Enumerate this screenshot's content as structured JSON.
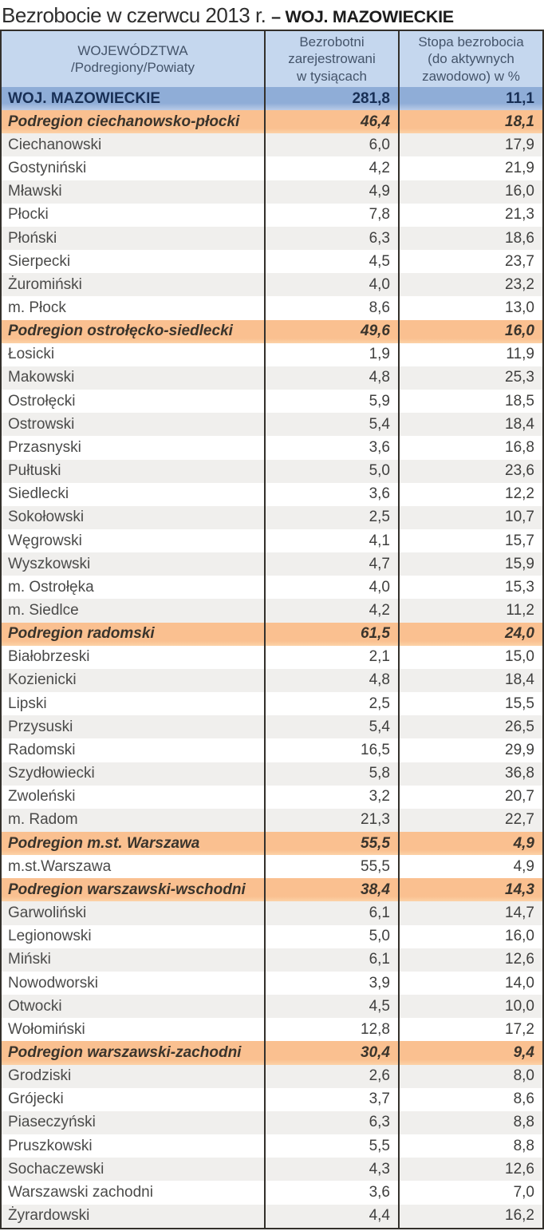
{
  "title": {
    "regular": "Bezrobocie w czerwcu 2013 r. ",
    "bold": "– WOJ. MAZOWIECKIE"
  },
  "table": {
    "headers": {
      "col1": "WOJEWÓDZTWA\n/Podregiony/Powiaty",
      "col2": "Bezrobotni\nzarejestrowani\nw tysiącach",
      "col3": "Stopa bezrobocia\n(do aktywnych\nzawodowo) w %"
    },
    "rows": [
      {
        "type": "voivodeship",
        "shade": false,
        "name": "WOJ. MAZOWIECKIE",
        "unemployed": "281,8",
        "rate": "11,1"
      },
      {
        "type": "subregion",
        "shade": false,
        "name": "Podregion ciechanowsko-płocki",
        "unemployed": "46,4",
        "rate": "18,1"
      },
      {
        "type": "county",
        "shade": true,
        "name": "Ciechanowski",
        "unemployed": "6,0",
        "rate": "17,9"
      },
      {
        "type": "county",
        "shade": false,
        "name": "Gostyniński",
        "unemployed": "4,2",
        "rate": "21,9"
      },
      {
        "type": "county",
        "shade": true,
        "name": "Mławski",
        "unemployed": "4,9",
        "rate": "16,0"
      },
      {
        "type": "county",
        "shade": false,
        "name": "Płocki",
        "unemployed": "7,8",
        "rate": "21,3"
      },
      {
        "type": "county",
        "shade": true,
        "name": "Płoński",
        "unemployed": "6,3",
        "rate": "18,6"
      },
      {
        "type": "county",
        "shade": false,
        "name": "Sierpecki",
        "unemployed": "4,5",
        "rate": "23,7"
      },
      {
        "type": "county",
        "shade": true,
        "name": "Żuromiński",
        "unemployed": "4,0",
        "rate": "23,2"
      },
      {
        "type": "county",
        "shade": false,
        "name": "m. Płock",
        "unemployed": "8,6",
        "rate": "13,0"
      },
      {
        "type": "subregion",
        "shade": false,
        "name": "Podregion ostrołęcko-siedlecki",
        "unemployed": "49,6",
        "rate": "16,0"
      },
      {
        "type": "county",
        "shade": false,
        "name": "Łosicki",
        "unemployed": "1,9",
        "rate": "11,9"
      },
      {
        "type": "county",
        "shade": true,
        "name": "Makowski",
        "unemployed": "4,8",
        "rate": "25,3"
      },
      {
        "type": "county",
        "shade": false,
        "name": "Ostrołęcki",
        "unemployed": "5,9",
        "rate": "18,5"
      },
      {
        "type": "county",
        "shade": true,
        "name": "Ostrowski",
        "unemployed": "5,4",
        "rate": "18,4"
      },
      {
        "type": "county",
        "shade": false,
        "name": "Przasnyski",
        "unemployed": "3,6",
        "rate": "16,8"
      },
      {
        "type": "county",
        "shade": true,
        "name": "Pułtuski",
        "unemployed": "5,0",
        "rate": "23,6"
      },
      {
        "type": "county",
        "shade": false,
        "name": "Siedlecki",
        "unemployed": "3,6",
        "rate": "12,2"
      },
      {
        "type": "county",
        "shade": true,
        "name": "Sokołowski",
        "unemployed": "2,5",
        "rate": "10,7"
      },
      {
        "type": "county",
        "shade": false,
        "name": "Węgrowski",
        "unemployed": "4,1",
        "rate": "15,7"
      },
      {
        "type": "county",
        "shade": true,
        "name": "Wyszkowski",
        "unemployed": "4,7",
        "rate": "15,9"
      },
      {
        "type": "county",
        "shade": false,
        "name": "m. Ostrołęka",
        "unemployed": "4,0",
        "rate": "15,3"
      },
      {
        "type": "county",
        "shade": true,
        "name": "m. Siedlce",
        "unemployed": "4,2",
        "rate": "11,2"
      },
      {
        "type": "subregion",
        "shade": false,
        "name": "Podregion radomski",
        "unemployed": "61,5",
        "rate": "24,0"
      },
      {
        "type": "county",
        "shade": false,
        "name": "Białobrzeski",
        "unemployed": "2,1",
        "rate": "15,0"
      },
      {
        "type": "county",
        "shade": true,
        "name": "Kozienicki",
        "unemployed": "4,8",
        "rate": "18,4"
      },
      {
        "type": "county",
        "shade": false,
        "name": "Lipski",
        "unemployed": "2,5",
        "rate": "15,5"
      },
      {
        "type": "county",
        "shade": true,
        "name": "Przysuski",
        "unemployed": "5,4",
        "rate": "26,5"
      },
      {
        "type": "county",
        "shade": false,
        "name": "Radomski",
        "unemployed": "16,5",
        "rate": "29,9"
      },
      {
        "type": "county",
        "shade": true,
        "name": "Szydłowiecki",
        "unemployed": "5,8",
        "rate": "36,8"
      },
      {
        "type": "county",
        "shade": false,
        "name": "Zwoleński",
        "unemployed": "3,2",
        "rate": "20,7"
      },
      {
        "type": "county",
        "shade": true,
        "name": "m. Radom",
        "unemployed": "21,3",
        "rate": "22,7"
      },
      {
        "type": "subregion",
        "shade": false,
        "name": "Podregion m.st. Warszawa",
        "unemployed": "55,5",
        "rate": "4,9"
      },
      {
        "type": "county",
        "shade": false,
        "name": "m.st.Warszawa",
        "unemployed": "55,5",
        "rate": "4,9"
      },
      {
        "type": "subregion",
        "shade": false,
        "name": "Podregion warszawski-wschodni",
        "unemployed": "38,4",
        "rate": "14,3"
      },
      {
        "type": "county",
        "shade": true,
        "name": "Garwoliński",
        "unemployed": "6,1",
        "rate": "14,7"
      },
      {
        "type": "county",
        "shade": false,
        "name": "Legionowski",
        "unemployed": "5,0",
        "rate": "16,0"
      },
      {
        "type": "county",
        "shade": true,
        "name": "Miński",
        "unemployed": "6,1",
        "rate": "12,6"
      },
      {
        "type": "county",
        "shade": false,
        "name": "Nowodworski",
        "unemployed": "3,9",
        "rate": "14,0"
      },
      {
        "type": "county",
        "shade": true,
        "name": "Otwocki",
        "unemployed": "4,5",
        "rate": "10,0"
      },
      {
        "type": "county",
        "shade": false,
        "name": "Wołomiński",
        "unemployed": "12,8",
        "rate": "17,2"
      },
      {
        "type": "subregion",
        "shade": false,
        "name": "Podregion warszawski-zachodni",
        "unemployed": "30,4",
        "rate": "9,4"
      },
      {
        "type": "county",
        "shade": true,
        "name": "Grodziski",
        "unemployed": "2,6",
        "rate": "8,0"
      },
      {
        "type": "county",
        "shade": false,
        "name": "Grójecki",
        "unemployed": "3,7",
        "rate": "8,6"
      },
      {
        "type": "county",
        "shade": true,
        "name": "Piaseczyński",
        "unemployed": "6,3",
        "rate": "8,8"
      },
      {
        "type": "county",
        "shade": false,
        "name": "Pruszkowski",
        "unemployed": "5,5",
        "rate": "8,8"
      },
      {
        "type": "county",
        "shade": true,
        "name": "Sochaczewski",
        "unemployed": "4,3",
        "rate": "12,6"
      },
      {
        "type": "county",
        "shade": false,
        "name": "Warszawski zachodni",
        "unemployed": "3,6",
        "rate": "7,0"
      },
      {
        "type": "county",
        "shade": true,
        "name": "Żyrardowski",
        "unemployed": "4,4",
        "rate": "16,2"
      }
    ]
  },
  "colors": {
    "header_bg": "#c5d7ee",
    "header_text": "#44546a",
    "voivodeship_row_bg": "#8fadd7",
    "subregion_row_bg": "#fac090",
    "shaded_row_bg": "#f0efed",
    "white_row_bg": "#ffffff",
    "border": "#33302b",
    "voivodeship_text": "#182f55",
    "subregion_text": "#3a342c"
  }
}
